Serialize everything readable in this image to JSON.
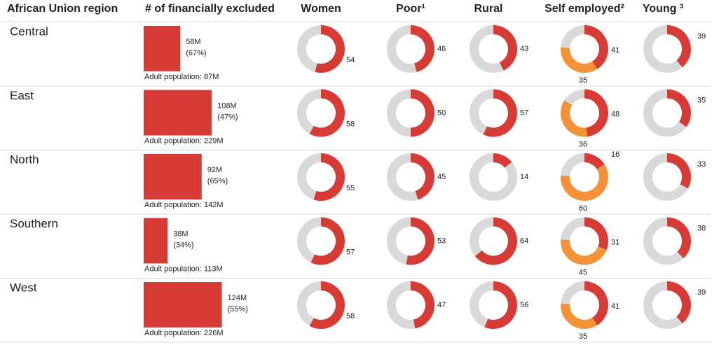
{
  "table": {
    "columns": [
      "African Union region",
      "# of financially excluded",
      "Women",
      "Poor¹",
      "Rural",
      "Self employed²",
      "Young ³"
    ],
    "colors": {
      "primary": "#d63c35",
      "secondary": "#f39237",
      "track": "#d9d9d9"
    },
    "rows": [
      {
        "region": "Central",
        "excluded": 58,
        "excluded_label": "58M",
        "excluded_pct": 67,
        "excluded_pct_label": "(67%)",
        "adult_population": "Adult population: 87M",
        "women": 54,
        "poor": 46,
        "rural": 43,
        "self_employed": [
          41,
          35
        ],
        "young": 39
      },
      {
        "region": "East",
        "excluded": 108,
        "excluded_label": "108M",
        "excluded_pct": 47,
        "excluded_pct_label": "(47%)",
        "adult_population": "Adult population: 229M",
        "women": 58,
        "poor": 50,
        "rural": 57,
        "self_employed": [
          48,
          36
        ],
        "young": 35
      },
      {
        "region": "North",
        "excluded": 92,
        "excluded_label": "92M",
        "excluded_pct": 65,
        "excluded_pct_label": "(65%)",
        "adult_population": "Adult population: 142M",
        "women": 55,
        "poor": 45,
        "rural": 14,
        "self_employed": [
          16,
          60
        ],
        "young": 33
      },
      {
        "region": "Southern",
        "excluded": 38,
        "excluded_label": "38M",
        "excluded_pct": 34,
        "excluded_pct_label": "(34%)",
        "adult_population": "Adult population: 113M",
        "women": 57,
        "poor": 53,
        "rural": 64,
        "self_employed": [
          31,
          45
        ],
        "young": 38
      },
      {
        "region": "West",
        "excluded": 124,
        "excluded_label": "124M",
        "excluded_pct": 55,
        "excluded_pct_label": "(55%)",
        "adult_population": "Adult population: 226M",
        "women": 58,
        "poor": 47,
        "rural": 56,
        "self_employed": [
          41,
          35
        ],
        "young": 39
      }
    ]
  }
}
